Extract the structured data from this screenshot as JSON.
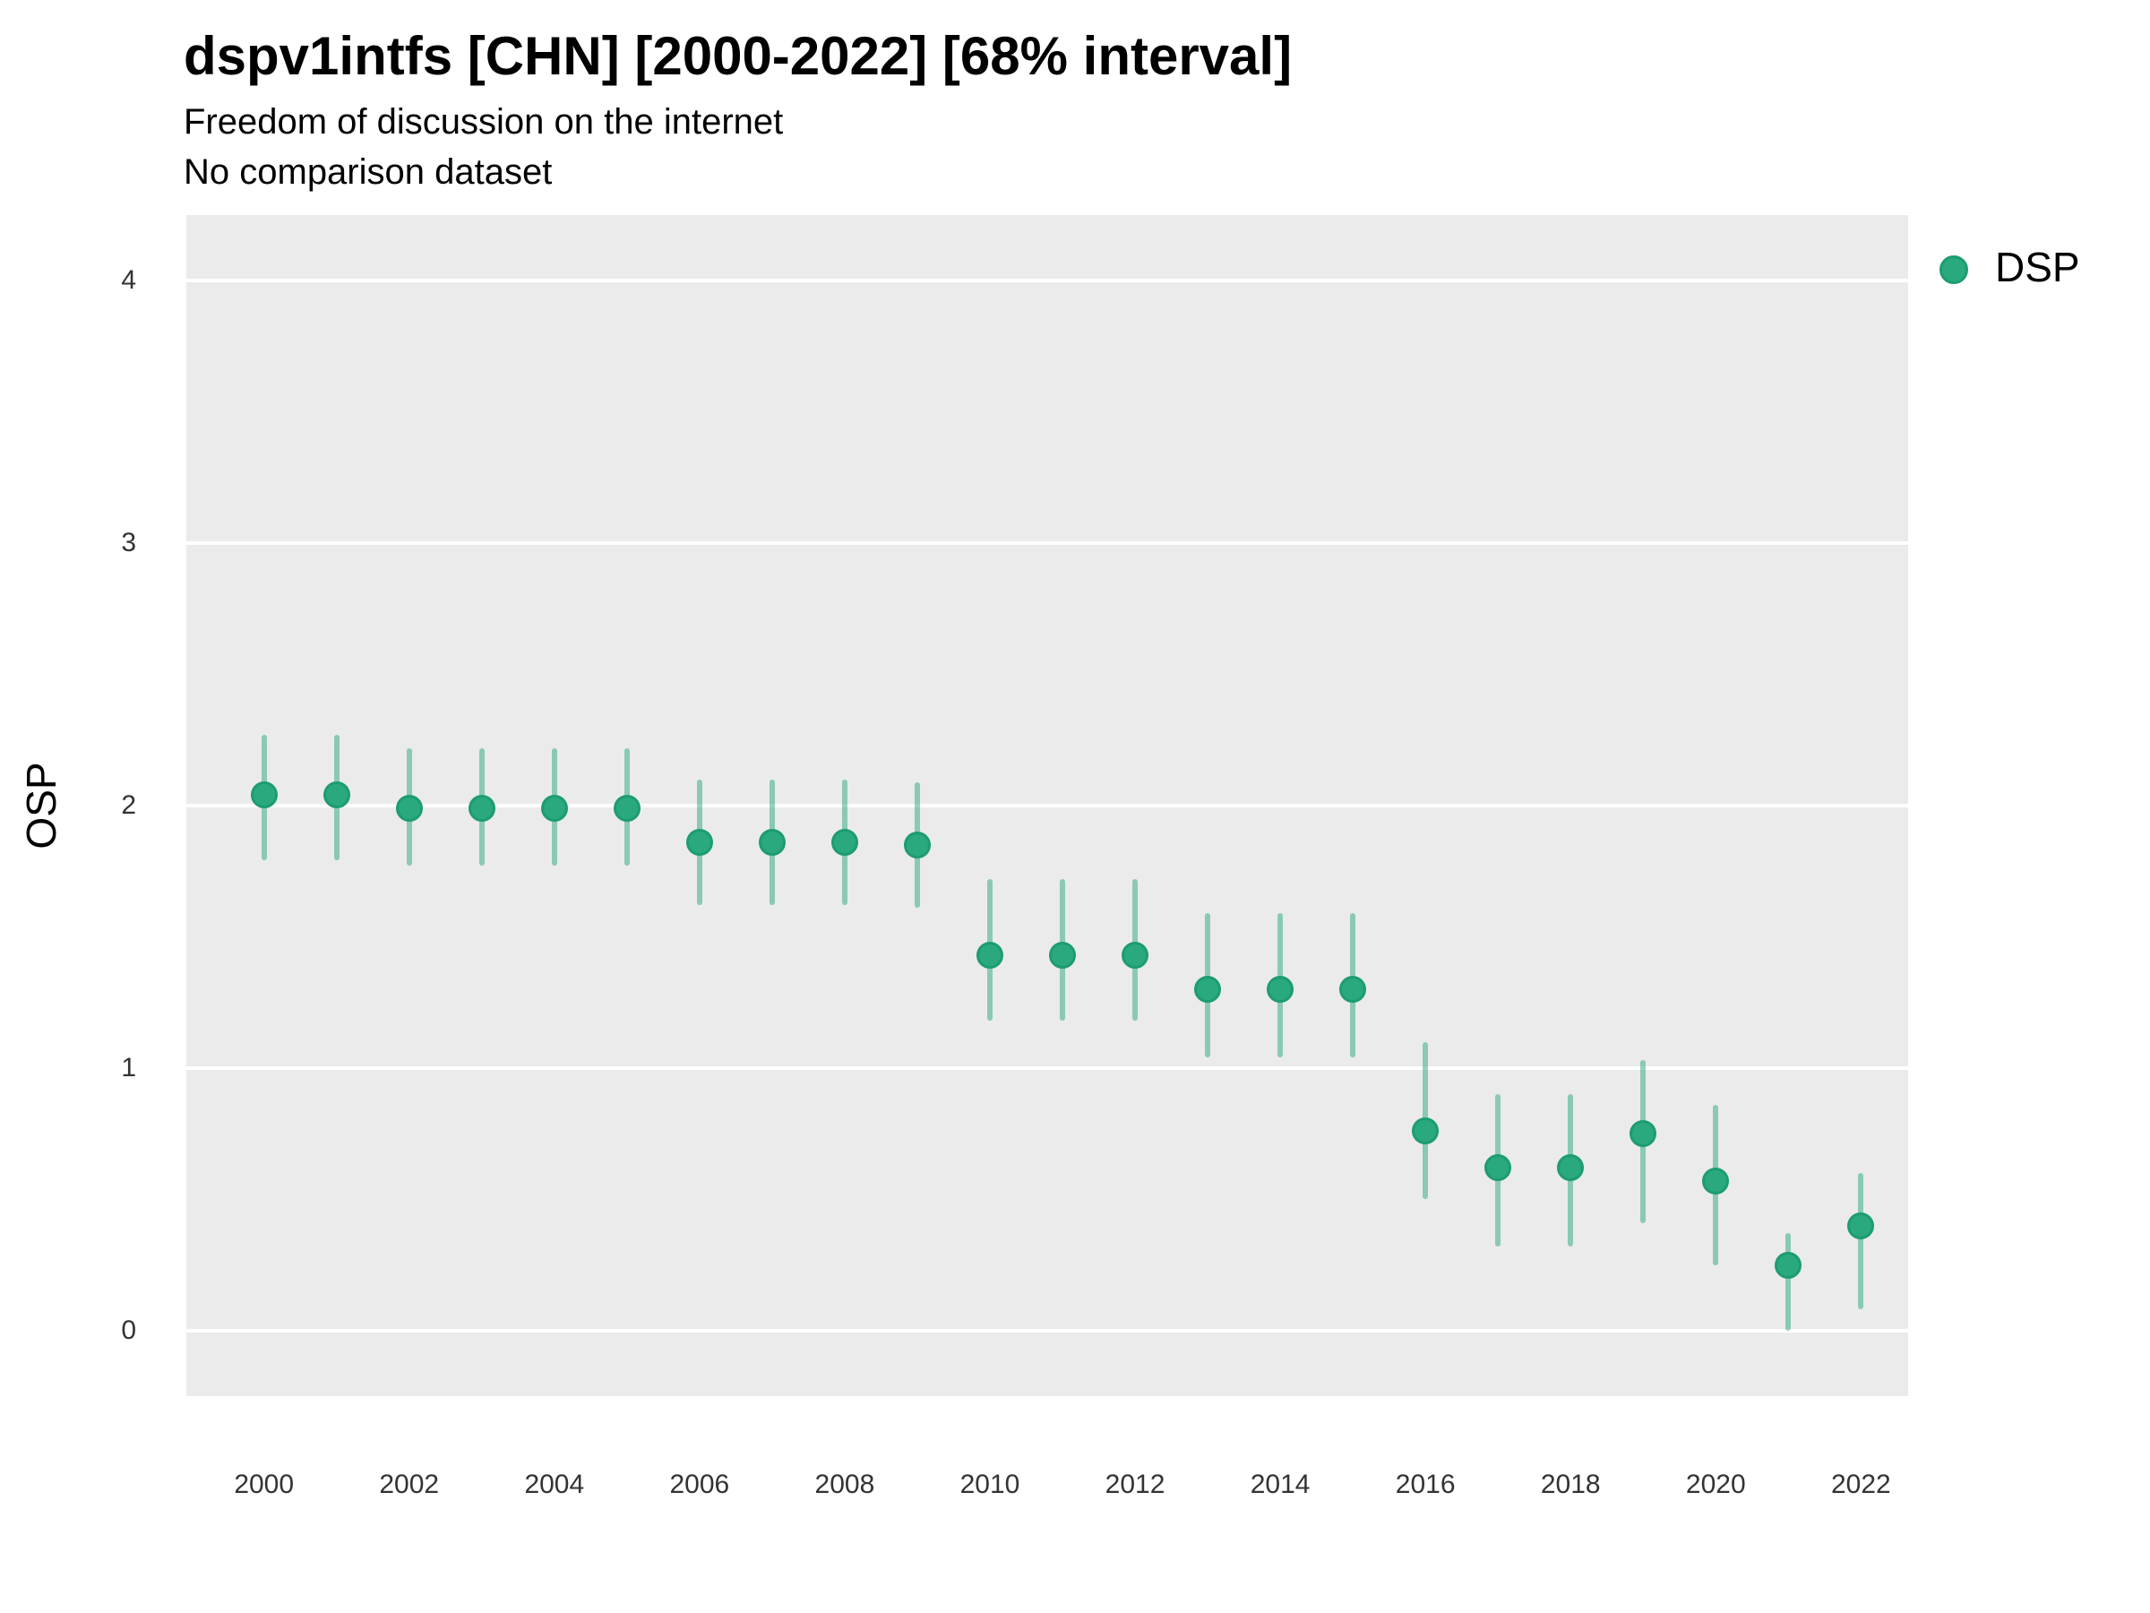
{
  "header": {
    "title": "dspv1intfs [CHN] [2000-2022] [68% interval]",
    "subtitle_line1": "Freedom of discussion on the internet",
    "subtitle_line2": "No comparison dataset"
  },
  "legend": {
    "position": "right-top",
    "items": [
      {
        "label": "DSP",
        "color": "#2aa87e"
      }
    ]
  },
  "colors": {
    "panel_background": "#ebebeb",
    "gridline": "#ffffff",
    "point_fill": "#2aa87e",
    "point_border": "#1d9c72",
    "interval_bar": "rgba(42,168,126,0.5)",
    "title_text": "#000000",
    "tick_text": "#333333"
  },
  "chart_data": {
    "type": "scatter",
    "subtype": "pointrange",
    "title": "dspv1intfs [CHN] [2000-2022] [68% interval]",
    "subtitle": [
      "Freedom of discussion on the internet",
      "No comparison dataset"
    ],
    "xlabel": "",
    "ylabel": "OSP",
    "ylim": [
      -0.25,
      4.25
    ],
    "xlim": [
      1998.93,
      2022.65
    ],
    "y_ticks": [
      0,
      1,
      2,
      3,
      4
    ],
    "x_ticks": [
      2000,
      2002,
      2004,
      2006,
      2008,
      2010,
      2012,
      2014,
      2016,
      2018,
      2020,
      2022
    ],
    "grid": "major-horizontal-only",
    "legend_position": "right-top",
    "series": [
      {
        "name": "DSP",
        "interval": "68%",
        "points": [
          {
            "year": 2000,
            "est": 2.04,
            "lo": 1.79,
            "hi": 2.27
          },
          {
            "year": 2001,
            "est": 2.04,
            "lo": 1.79,
            "hi": 2.27
          },
          {
            "year": 2002,
            "est": 1.99,
            "lo": 1.77,
            "hi": 2.22
          },
          {
            "year": 2003,
            "est": 1.99,
            "lo": 1.77,
            "hi": 2.22
          },
          {
            "year": 2004,
            "est": 1.99,
            "lo": 1.77,
            "hi": 2.22
          },
          {
            "year": 2005,
            "est": 1.99,
            "lo": 1.77,
            "hi": 2.22
          },
          {
            "year": 2006,
            "est": 1.86,
            "lo": 1.62,
            "hi": 2.1
          },
          {
            "year": 2007,
            "est": 1.86,
            "lo": 1.62,
            "hi": 2.1
          },
          {
            "year": 2008,
            "est": 1.86,
            "lo": 1.62,
            "hi": 2.1
          },
          {
            "year": 2009,
            "est": 1.85,
            "lo": 1.61,
            "hi": 2.09
          },
          {
            "year": 2010,
            "est": 1.43,
            "lo": 1.18,
            "hi": 1.72
          },
          {
            "year": 2011,
            "est": 1.43,
            "lo": 1.18,
            "hi": 1.72
          },
          {
            "year": 2012,
            "est": 1.43,
            "lo": 1.18,
            "hi": 1.72
          },
          {
            "year": 2013,
            "est": 1.3,
            "lo": 1.04,
            "hi": 1.59
          },
          {
            "year": 2014,
            "est": 1.3,
            "lo": 1.04,
            "hi": 1.59
          },
          {
            "year": 2015,
            "est": 1.3,
            "lo": 1.04,
            "hi": 1.59
          },
          {
            "year": 2016,
            "est": 0.76,
            "lo": 0.5,
            "hi": 1.1
          },
          {
            "year": 2017,
            "est": 0.62,
            "lo": 0.32,
            "hi": 0.9
          },
          {
            "year": 2018,
            "est": 0.62,
            "lo": 0.32,
            "hi": 0.9
          },
          {
            "year": 2019,
            "est": 0.75,
            "lo": 0.41,
            "hi": 1.03
          },
          {
            "year": 2020,
            "est": 0.57,
            "lo": 0.25,
            "hi": 0.86
          },
          {
            "year": 2021,
            "est": 0.25,
            "lo": 0.0,
            "hi": 0.37
          },
          {
            "year": 2022,
            "est": 0.4,
            "lo": 0.08,
            "hi": 0.6
          }
        ]
      }
    ]
  }
}
